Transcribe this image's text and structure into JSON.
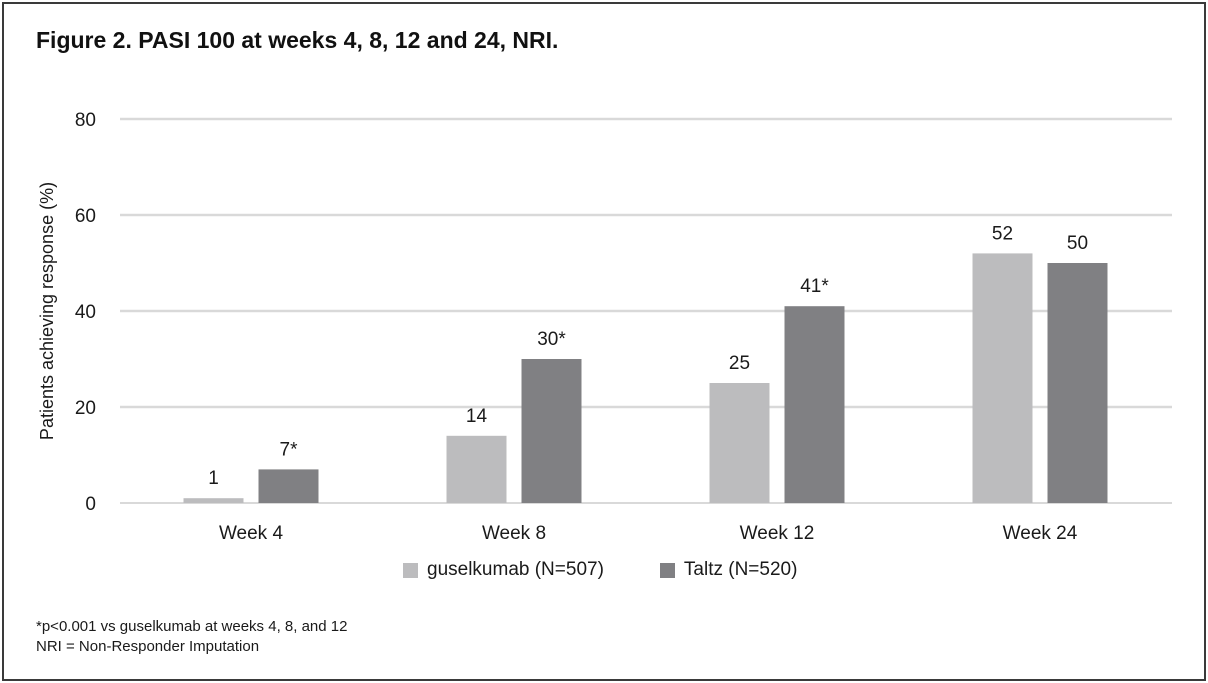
{
  "title": "Figure 2. PASI 100 at weeks 4, 8, 12 and 24, NRI.",
  "colors": {
    "guselkumab": "#bcbcbe",
    "taltz": "#808083",
    "grid": "#d9d9d9"
  },
  "footnotes": [
    "*p<0.001 vs guselkumab at weeks 4, 8, and 12",
    "NRI = Non-Responder Imputation"
  ],
  "chart_data": {
    "type": "bar",
    "title": "Figure 2. PASI 100 at weeks 4, 8, 12 and 24, NRI.",
    "xlabel": "",
    "ylabel": "Patients achieving response (%)",
    "ylim": [
      0,
      80
    ],
    "yticks": [
      "0",
      "20",
      "40",
      "60",
      "80"
    ],
    "grid": true,
    "legend_position": "bottom",
    "categories": [
      "Week 4",
      "Week 8",
      "Week 12",
      "Week 24"
    ],
    "series": [
      {
        "name": "guselkumab (N=507)",
        "values": [
          1,
          14,
          25,
          52
        ],
        "labels": [
          "1",
          "14",
          "25",
          "52"
        ]
      },
      {
        "name": "Taltz (N=520)",
        "values": [
          7,
          30,
          41,
          50
        ],
        "labels": [
          "7*",
          "30*",
          "41*",
          "50"
        ]
      }
    ]
  }
}
